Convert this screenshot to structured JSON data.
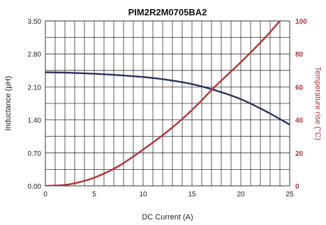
{
  "chart_data": {
    "type": "line",
    "title": "PIM2R2M0705BA2",
    "xlabel": "DC Current (A)",
    "ylabel_left": "Inductance (µH)",
    "ylabel_right": "Temperature rise (°C)",
    "xlim": [
      0,
      25
    ],
    "ylim_left": [
      0,
      3.5
    ],
    "ylim_right": [
      0,
      100
    ],
    "x_ticks": [
      "0",
      "5",
      "10",
      "15",
      "20",
      "25"
    ],
    "y_left_ticks": [
      "0.00",
      "0.70",
      "1.40",
      "2.10",
      "2.80",
      "3.50"
    ],
    "y_right_ticks": [
      "0",
      "20",
      "40",
      "60",
      "80",
      "100"
    ],
    "grid": true,
    "series": [
      {
        "axis": "left",
        "color": "#26305e",
        "x": [
          0,
          2.5,
          5,
          7.5,
          10,
          12.5,
          15,
          17.5,
          20,
          22.5,
          25
        ],
        "values": [
          2.41,
          2.4,
          2.38,
          2.35,
          2.31,
          2.25,
          2.16,
          2.02,
          1.84,
          1.59,
          1.3
        ]
      },
      {
        "axis": "right",
        "color": "#b03434",
        "x": [
          0,
          2.5,
          5,
          7.5,
          10,
          12.5,
          15,
          17.5,
          20,
          22.5,
          25
        ],
        "values": [
          0,
          1,
          5,
          12,
          22,
          33,
          46,
          61,
          75,
          90,
          107
        ]
      }
    ]
  }
}
